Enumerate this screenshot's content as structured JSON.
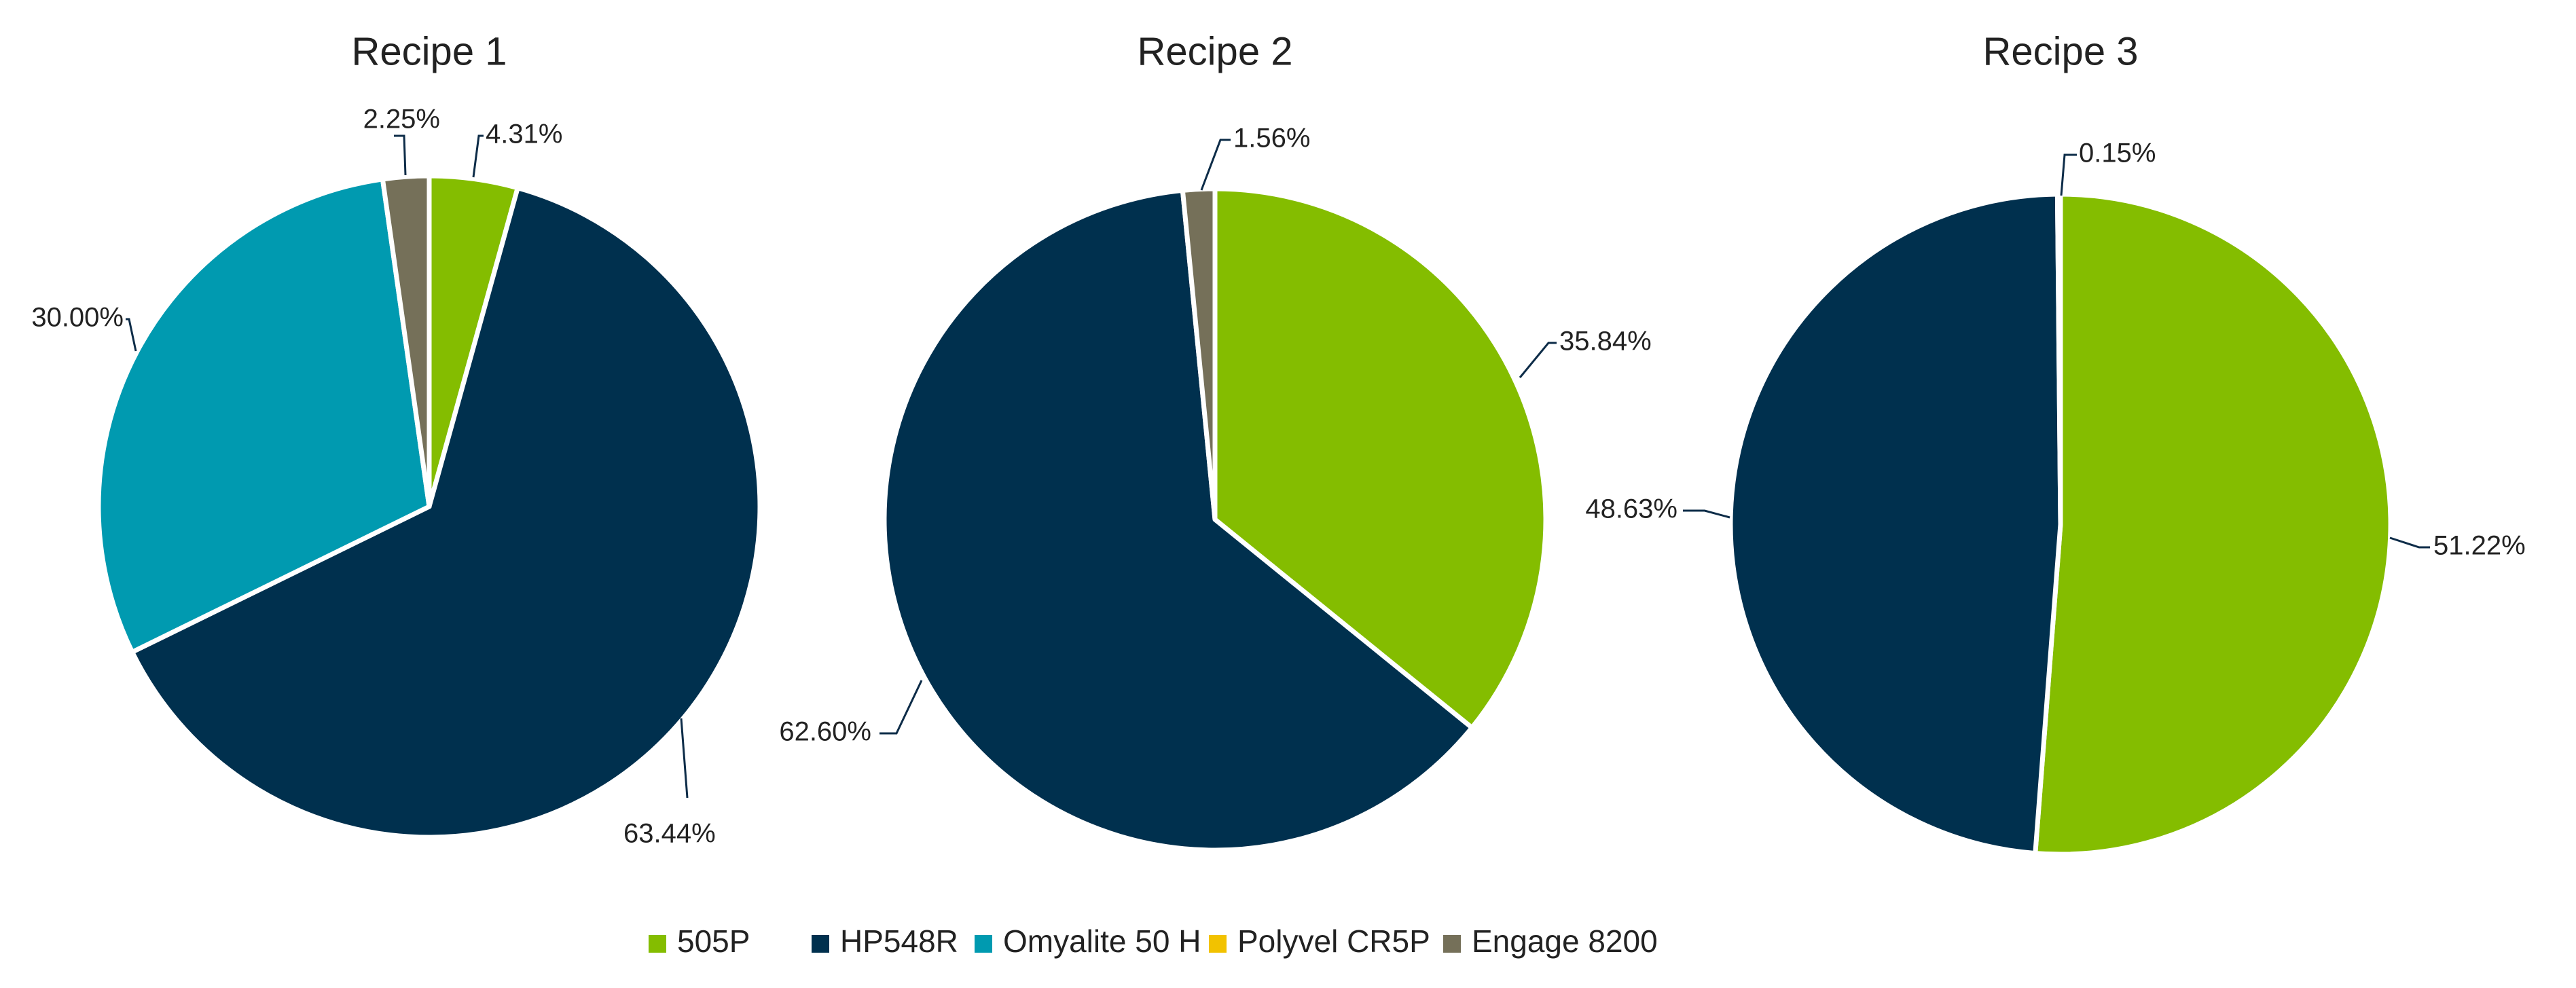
{
  "chart_data": [
    {
      "type": "pie",
      "title": "Recipe 1",
      "slices": [
        {
          "name": "505P",
          "value": 4.31,
          "label": "4.31%"
        },
        {
          "name": "HP548R",
          "value": 63.44,
          "label": "63.44%"
        },
        {
          "name": "Omyalite 50 H",
          "value": 30.0,
          "label": "30.00%"
        },
        {
          "name": "Engage 8200",
          "value": 2.25,
          "label": "2.25%"
        }
      ]
    },
    {
      "type": "pie",
      "title": "Recipe 2",
      "slices": [
        {
          "name": "505P",
          "value": 35.84,
          "label": "35.84%"
        },
        {
          "name": "HP548R",
          "value": 62.6,
          "label": "62.60%"
        },
        {
          "name": "Engage 8200",
          "value": 1.56,
          "label": "1.56%"
        }
      ]
    },
    {
      "type": "pie",
      "title": "Recipe 3",
      "slices": [
        {
          "name": "505P",
          "value": 51.22,
          "label": "51.22%"
        },
        {
          "name": "HP548R",
          "value": 48.63,
          "label": "48.63%"
        },
        {
          "name": "Polyvel CR5P",
          "value": 0.15,
          "label": "0.15%"
        }
      ]
    }
  ],
  "legend": {
    "placement": "bottom-center",
    "items": [
      {
        "name": "505P",
        "color": "#84BD00"
      },
      {
        "name": "HP548R",
        "color": "#00304E"
      },
      {
        "name": "Omyalite 50 H",
        "color": "#009AB0"
      },
      {
        "name": "Polyvel CR5P",
        "color": "#F2C200"
      },
      {
        "name": "Engage 8200",
        "color": "#757059"
      }
    ]
  }
}
